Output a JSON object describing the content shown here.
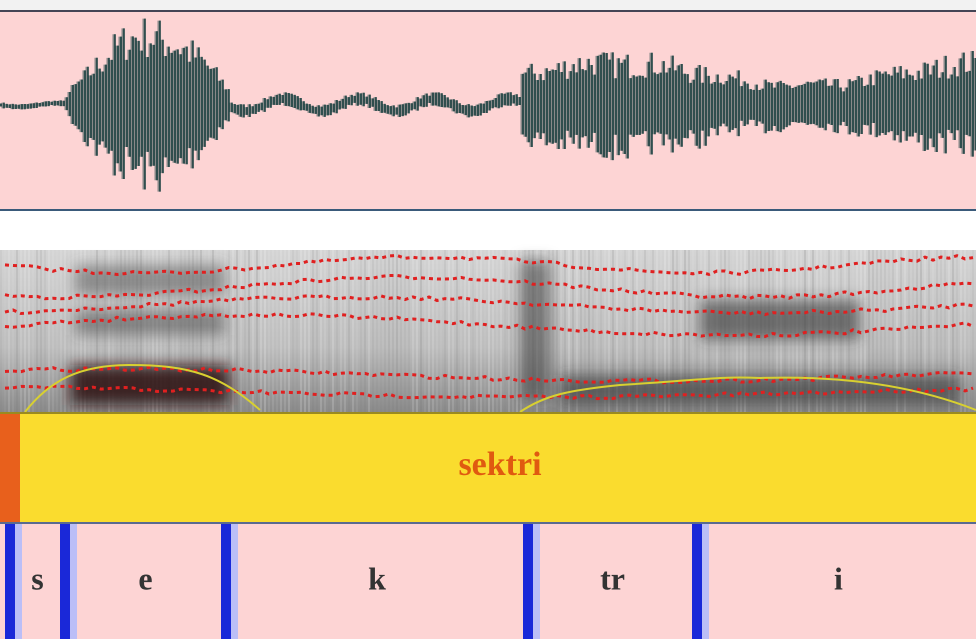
{
  "word_tier": {
    "label": "sektri"
  },
  "phone_tier": {
    "segments": [
      {
        "label": "s"
      },
      {
        "label": "e"
      },
      {
        "label": "k"
      },
      {
        "label": "tr"
      },
      {
        "label": "i"
      }
    ]
  }
}
